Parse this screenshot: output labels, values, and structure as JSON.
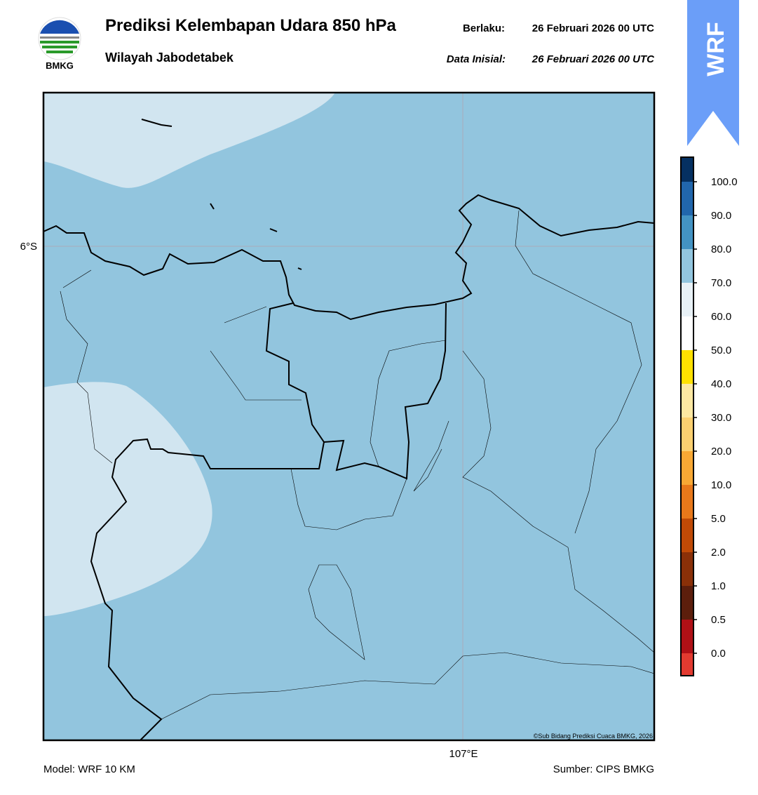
{
  "header": {
    "title": "Prediksi Kelembapan Udara 850 hPa",
    "subtitle": "Wilayah Jabodetabek",
    "valid_label": "Berlaku:",
    "valid_time": "26 Februari 2026 00 UTC",
    "init_label": "Data Inisial:",
    "init_time": "26 Februari 2026 00 UTC",
    "logo": "BMKG",
    "badge": "WRF"
  },
  "map": {
    "lat_label": "6°S",
    "lon_label": "107°E",
    "credit": "©Sub Bidang Prediksi Cuaca BMKG, 2026"
  },
  "colorbar": {
    "labels": [
      "0.0",
      "0.5",
      "1.0",
      "2.0",
      "5.0",
      "10.0",
      "20.0",
      "30.0",
      "40.0",
      "50.0",
      "60.0",
      "70.0",
      "80.0",
      "90.0",
      "100.0"
    ],
    "colors": [
      "#e23a30",
      "#b01016",
      "#5c1e0c",
      "#8a3008",
      "#c04a06",
      "#e8781a",
      "#f8a834",
      "#fcd070",
      "#fde8a2",
      "#ffe000",
      "#ffffff",
      "#e8f1f6",
      "#92c5de",
      "#4393c3",
      "#2166ac",
      "#053061",
      "#2a0a4a"
    ]
  },
  "footer": {
    "model": "Model: WRF 10 KM",
    "source": "Sumber: CIPS BMKG"
  }
}
